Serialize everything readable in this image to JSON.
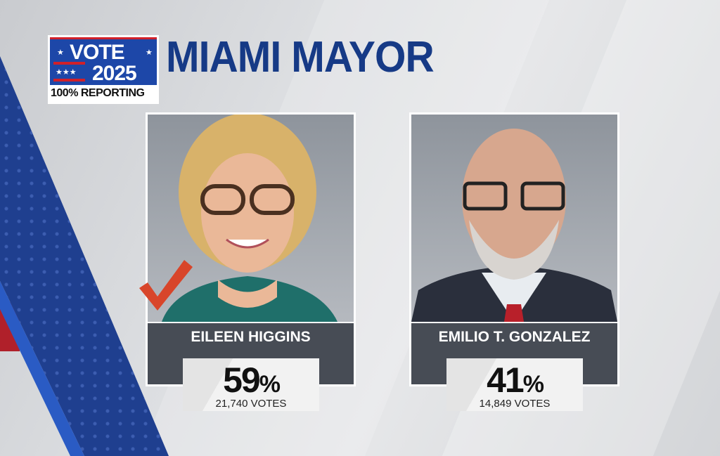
{
  "badge": {
    "line1": "VOTE",
    "line2": "2025",
    "reporting": "100% REPORTING"
  },
  "title": "MIAMI MAYOR",
  "colors": {
    "title": "#163a86",
    "badge_blue": "#1d47a8",
    "badge_red": "#d0202a",
    "name_bar": "#474c55",
    "check": "#d8452a"
  },
  "candidates": [
    {
      "name": "EILEEN HIGGINS",
      "percent": "59",
      "percent_sign": "%",
      "votes": "21,740 VOTES",
      "winner": true
    },
    {
      "name": "EMILIO T. GONZALEZ",
      "percent": "41",
      "percent_sign": "%",
      "votes": "14,849 VOTES",
      "winner": false
    }
  ]
}
